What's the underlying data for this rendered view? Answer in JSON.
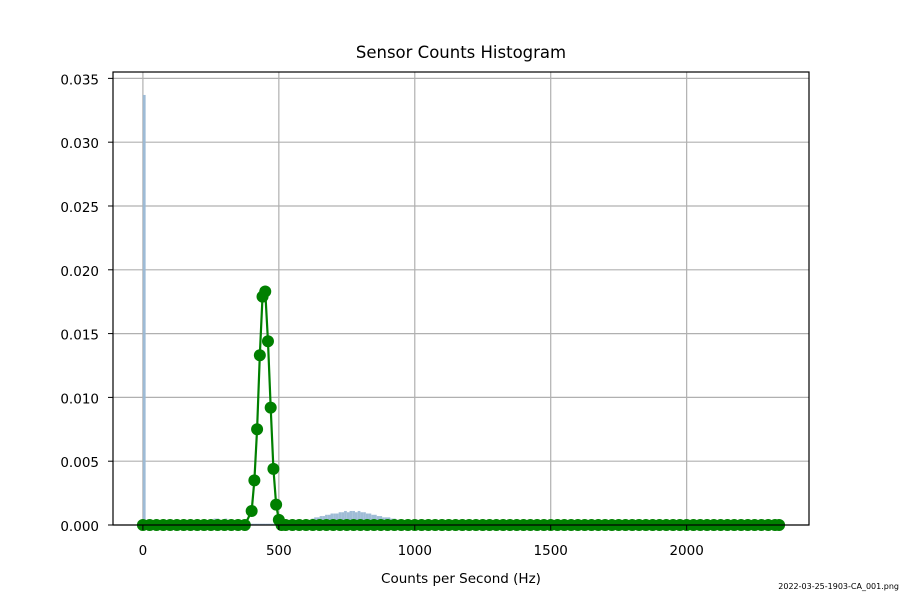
{
  "chart_data": {
    "type": "bar",
    "title": "Sensor Counts Histogram",
    "xlabel": "Counts per Second (Hz)",
    "ylabel": "",
    "xlim": [
      -110,
      2450
    ],
    "ylim": [
      0,
      0.0355
    ],
    "x_ticks": [
      0,
      500,
      1000,
      1500,
      2000
    ],
    "x_tick_labels": [
      "0",
      "500",
      "1000",
      "1500",
      "2000"
    ],
    "y_ticks": [
      0,
      0.005,
      0.01,
      0.015,
      0.02,
      0.025,
      0.03,
      0.035
    ],
    "y_tick_labels": [
      "0.000",
      "0.005",
      "0.010",
      "0.015",
      "0.020",
      "0.025",
      "0.030",
      "0.035"
    ],
    "grid": true,
    "legend": "none",
    "histogram": {
      "name": "",
      "color": "#9ab8d4",
      "bin_width": 10,
      "bins": [
        [
          0,
          0.0337
        ],
        [
          10,
          0.0002
        ],
        [
          20,
          0.0001
        ],
        [
          30,
          0.0001
        ],
        [
          200,
          0.0001
        ],
        [
          210,
          0.0002
        ],
        [
          220,
          0.0002
        ],
        [
          230,
          0.0003
        ],
        [
          240,
          0.0003
        ],
        [
          250,
          0.0004
        ],
        [
          260,
          0.0005
        ],
        [
          270,
          0.0005
        ],
        [
          280,
          0.0004
        ],
        [
          290,
          0.0004
        ],
        [
          300,
          0.0005
        ],
        [
          310,
          0.0004
        ],
        [
          320,
          0.0003
        ],
        [
          330,
          0.0003
        ],
        [
          340,
          0.0002
        ],
        [
          350,
          0.0002
        ],
        [
          360,
          0.0002
        ],
        [
          370,
          0.0001
        ],
        [
          380,
          0.0001
        ],
        [
          390,
          0.0001
        ],
        [
          400,
          0.0001
        ],
        [
          410,
          0.0001
        ],
        [
          420,
          0.0001
        ],
        [
          430,
          0.0001
        ],
        [
          440,
          0.0001
        ],
        [
          450,
          0.0001
        ],
        [
          460,
          0.0001
        ],
        [
          470,
          0.0001
        ],
        [
          480,
          0.0001
        ],
        [
          490,
          0.0001
        ],
        [
          500,
          0.0001
        ],
        [
          520,
          0.0001
        ],
        [
          530,
          0.0001
        ],
        [
          540,
          0.0001
        ],
        [
          550,
          0.0002
        ],
        [
          560,
          0.0002
        ],
        [
          570,
          0.0002
        ],
        [
          580,
          0.0003
        ],
        [
          590,
          0.0003
        ],
        [
          600,
          0.0004
        ],
        [
          610,
          0.0004
        ],
        [
          620,
          0.0005
        ],
        [
          630,
          0.0006
        ],
        [
          640,
          0.0006
        ],
        [
          650,
          0.0007
        ],
        [
          660,
          0.0007
        ],
        [
          670,
          0.0008
        ],
        [
          680,
          0.0008
        ],
        [
          690,
          0.0009
        ],
        [
          700,
          0.0009
        ],
        [
          710,
          0.0009
        ],
        [
          720,
          0.001
        ],
        [
          730,
          0.001
        ],
        [
          740,
          0.0011
        ],
        [
          750,
          0.001
        ],
        [
          760,
          0.0011
        ],
        [
          770,
          0.0011
        ],
        [
          780,
          0.001
        ],
        [
          790,
          0.0011
        ],
        [
          800,
          0.001
        ],
        [
          810,
          0.001
        ],
        [
          820,
          0.0009
        ],
        [
          830,
          0.0009
        ],
        [
          840,
          0.0008
        ],
        [
          850,
          0.0008
        ],
        [
          860,
          0.0007
        ],
        [
          870,
          0.0007
        ],
        [
          880,
          0.0006
        ],
        [
          890,
          0.0006
        ],
        [
          900,
          0.0006
        ],
        [
          910,
          0.0005
        ],
        [
          920,
          0.0005
        ],
        [
          930,
          0.0004
        ],
        [
          940,
          0.0004
        ],
        [
          950,
          0.0003
        ],
        [
          960,
          0.0003
        ],
        [
          970,
          0.0002
        ],
        [
          980,
          0.0002
        ],
        [
          990,
          0.0002
        ],
        [
          1000,
          0.0001
        ],
        [
          1010,
          0.0001
        ],
        [
          1020,
          0.0001
        ]
      ]
    },
    "series": [
      {
        "name": "",
        "type": "line",
        "color": "#008000",
        "x": [
          0,
          25,
          50,
          75,
          100,
          125,
          150,
          175,
          200,
          225,
          250,
          275,
          300,
          325,
          350,
          375,
          400,
          410,
          420,
          430,
          440,
          450,
          460,
          470,
          480,
          490,
          500,
          510,
          525,
          550,
          575,
          600,
          625,
          650,
          675,
          700,
          725,
          750,
          775,
          800,
          825,
          850,
          875,
          900,
          925,
          950,
          975,
          1000,
          1025,
          1050,
          1075,
          1100,
          1125,
          1150,
          1175,
          1200,
          1225,
          1250,
          1275,
          1300,
          1325,
          1350,
          1375,
          1400,
          1425,
          1450,
          1475,
          1500,
          1525,
          1550,
          1575,
          1600,
          1625,
          1650,
          1675,
          1700,
          1725,
          1750,
          1775,
          1800,
          1825,
          1850,
          1875,
          1900,
          1925,
          1950,
          1975,
          2000,
          2025,
          2050,
          2075,
          2100,
          2125,
          2150,
          2175,
          2200,
          2225,
          2250,
          2275,
          2300,
          2325,
          2340
        ],
        "y": [
          0,
          0,
          0,
          0,
          0,
          0,
          0,
          0,
          0,
          0,
          0,
          0,
          0,
          0,
          0,
          0,
          0.0011,
          0.0035,
          0.0075,
          0.0133,
          0.0179,
          0.0183,
          0.0144,
          0.0092,
          0.0044,
          0.0016,
          0.0004,
          0,
          0,
          0,
          0,
          0,
          0,
          0,
          0,
          0,
          0,
          0,
          0,
          0,
          0,
          0,
          0,
          0,
          0,
          0,
          0,
          0,
          0,
          0,
          0,
          0,
          0,
          0,
          0,
          0,
          0,
          0,
          0,
          0,
          0,
          0,
          0,
          0,
          0,
          0,
          0,
          0,
          0,
          0,
          0,
          0,
          0,
          0,
          0,
          0,
          0,
          0,
          0,
          0,
          0,
          0,
          0,
          0,
          0,
          0,
          0,
          0,
          0,
          0,
          0,
          0,
          0,
          0,
          0,
          0,
          0,
          0,
          0,
          0,
          0,
          0
        ]
      }
    ]
  },
  "footnote": "2022-03-25-1903-CA_001.png"
}
